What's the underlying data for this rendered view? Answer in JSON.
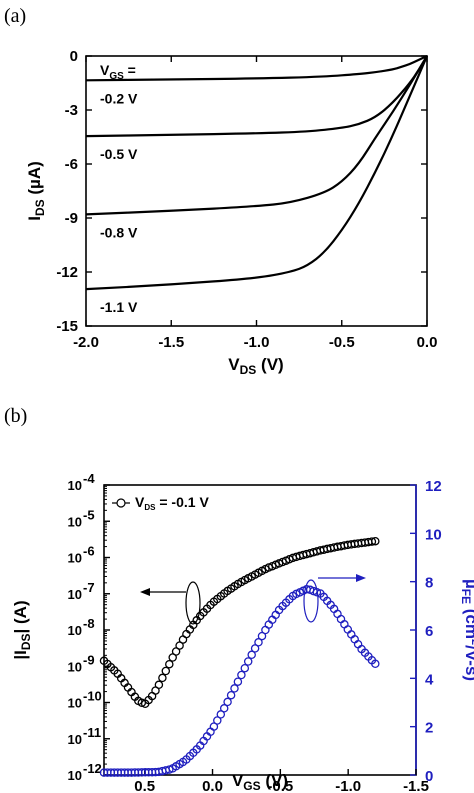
{
  "chart_data": [
    {
      "panel_label": "(a)",
      "type": "line",
      "xlabel_main": "V",
      "xlabel_sub": "DS",
      "xlabel_unit": " (V)",
      "ylabel_main": "I",
      "ylabel_sub": "DS",
      "ylabel_unit": " (µA)",
      "xlim": [
        -2.0,
        0.0
      ],
      "ylim": [
        -15,
        0
      ],
      "x_ticks": [
        -2.0,
        -1.5,
        -1.0,
        -0.5,
        0.0
      ],
      "x_tick_labels": [
        "-2.0",
        "-1.5",
        "-1.0",
        "-0.5",
        "0.0"
      ],
      "y_ticks": [
        0,
        -3,
        -6,
        -9,
        -12,
        -15
      ],
      "y_tick_labels": [
        "0",
        "-3",
        "-6",
        "-9",
        "-12",
        "-15"
      ],
      "legend_title_main": "V",
      "legend_title_sub": "GS",
      "legend_title_suffix": " =",
      "grid": false,
      "series": [
        {
          "label": "-0.2 V",
          "x": [
            -2.0,
            -1.5,
            -1.0,
            -0.6,
            -0.4,
            -0.3,
            -0.2,
            -0.15,
            -0.1,
            -0.05,
            0.0
          ],
          "y": [
            -1.35,
            -1.3,
            -1.25,
            -1.15,
            -1.0,
            -0.9,
            -0.75,
            -0.6,
            -0.45,
            -0.22,
            0.0
          ]
        },
        {
          "label": "-0.5 V",
          "x": [
            -2.0,
            -1.5,
            -1.0,
            -0.7,
            -0.5,
            -0.4,
            -0.3,
            -0.2,
            -0.1,
            -0.05,
            0.0
          ],
          "y": [
            -4.45,
            -4.38,
            -4.3,
            -4.2,
            -4.0,
            -3.8,
            -3.4,
            -2.6,
            -1.5,
            -0.8,
            0.0
          ]
        },
        {
          "label": "-0.8 V",
          "x": [
            -2.0,
            -1.5,
            -1.0,
            -0.8,
            -0.6,
            -0.5,
            -0.4,
            -0.3,
            -0.2,
            -0.1,
            0.0
          ],
          "y": [
            -8.8,
            -8.6,
            -8.35,
            -8.15,
            -7.6,
            -7.0,
            -6.0,
            -4.5,
            -3.1,
            -1.6,
            0.0
          ]
        },
        {
          "label": "-1.1 V",
          "x": [
            -2.0,
            -1.5,
            -1.0,
            -0.8,
            -0.7,
            -0.6,
            -0.5,
            -0.4,
            -0.3,
            -0.2,
            -0.1,
            0.0
          ],
          "y": [
            -12.95,
            -12.7,
            -12.35,
            -12.0,
            -11.65,
            -10.9,
            -9.7,
            -8.2,
            -6.4,
            -4.4,
            -2.2,
            0.0
          ]
        }
      ]
    },
    {
      "panel_label": "(b)",
      "type": "scatter",
      "xlabel_main": "V",
      "xlabel_sub": "GS",
      "xlabel_unit": " (V)",
      "ylabel_left_main": "|I",
      "ylabel_left_sub": "DS",
      "ylabel_left_unit": "| (A)",
      "ylabel_right_main": "µ",
      "ylabel_right_sub": "FE",
      "ylabel_right_unit": " (cm",
      "ylabel_right_sup": "2",
      "ylabel_right_tail": "/V-s)",
      "xlim": [
        0.8,
        -1.5
      ],
      "x_ticks": [
        0.5,
        0.0,
        -0.5,
        -1.0,
        -1.5
      ],
      "x_tick_labels": [
        "0.5",
        "0.0",
        "-0.5",
        "-1.0",
        "-1.5"
      ],
      "y_left_scale": "log",
      "y_left_exp_range": [
        -12,
        -4
      ],
      "y_left_tick_base": "10",
      "y_left_tick_exps": [
        "-12",
        "-11",
        "-10",
        "-9",
        "-8",
        "-7",
        "-6",
        "-5",
        "-4"
      ],
      "y_right_lim": [
        0,
        12
      ],
      "y_right_ticks": [
        0,
        2,
        4,
        6,
        8,
        10,
        12
      ],
      "y_right_tick_labels": [
        "0",
        "2",
        "4",
        "6",
        "8",
        "10",
        "12"
      ],
      "legend_prefix": "V",
      "legend_sub": "DS",
      "legend_suffix": " = -0.1 V",
      "legend_position": "top-left",
      "grid": false,
      "series": [
        {
          "label": "|IDS|",
          "axis": "left",
          "color": "#000000",
          "marker": "open-circle",
          "x": [
            0.8,
            0.7,
            0.6,
            0.55,
            0.5,
            0.45,
            0.4,
            0.3,
            0.2,
            0.1,
            0.0,
            -0.1,
            -0.2,
            -0.3,
            -0.4,
            -0.5,
            -0.6,
            -0.7,
            -0.8,
            -0.9,
            -1.0,
            -1.1,
            -1.2
          ],
          "log10_y": [
            -8.85,
            -9.2,
            -9.7,
            -9.95,
            -10.05,
            -9.85,
            -9.55,
            -8.8,
            -8.15,
            -7.65,
            -7.25,
            -6.95,
            -6.7,
            -6.5,
            -6.3,
            -6.15,
            -6.0,
            -5.9,
            -5.8,
            -5.72,
            -5.65,
            -5.6,
            -5.55
          ]
        },
        {
          "label": "µFE",
          "axis": "right",
          "color": "#1f1fbf",
          "marker": "open-circle",
          "x": [
            0.8,
            0.6,
            0.4,
            0.3,
            0.2,
            0.1,
            0.0,
            -0.1,
            -0.2,
            -0.3,
            -0.4,
            -0.5,
            -0.6,
            -0.7,
            -0.8,
            -0.9,
            -1.0,
            -1.1,
            -1.2
          ],
          "y": [
            0.1,
            0.1,
            0.12,
            0.25,
            0.6,
            1.15,
            1.9,
            2.9,
            4.0,
            5.1,
            6.1,
            6.9,
            7.45,
            7.7,
            7.5,
            6.85,
            6.0,
            5.2,
            4.6
          ]
        }
      ]
    }
  ]
}
